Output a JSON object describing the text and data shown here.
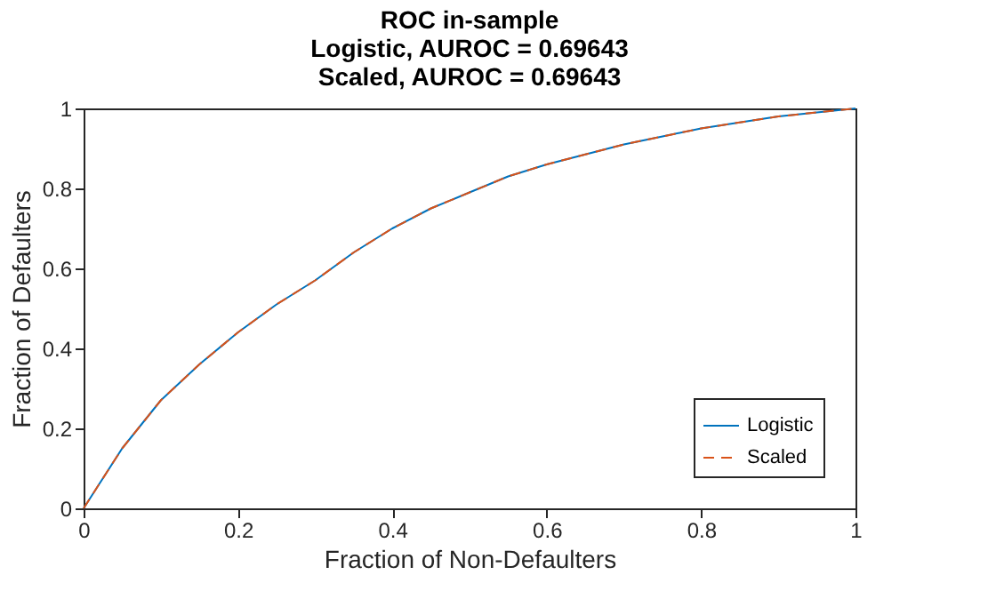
{
  "chart_data": {
    "type": "line",
    "title": "ROC in-sample\nLogistic, AUROC = 0.69643\nScaled, AUROC = 0.69643",
    "xlabel": "Fraction of Non-Defaulters",
    "ylabel": "Fraction of Defaulters",
    "x": [
      0,
      0.02,
      0.05,
      0.1,
      0.15,
      0.2,
      0.25,
      0.3,
      0.35,
      0.4,
      0.45,
      0.5,
      0.55,
      0.6,
      0.65,
      0.7,
      0.75,
      0.8,
      0.85,
      0.9,
      0.95,
      1
    ],
    "series": [
      {
        "name": "Logistic",
        "color": "#0072bd",
        "line_style": "solid",
        "values": [
          0,
          0.06,
          0.15,
          0.27,
          0.36,
          0.44,
          0.51,
          0.57,
          0.64,
          0.7,
          0.75,
          0.79,
          0.83,
          0.86,
          0.885,
          0.91,
          0.93,
          0.95,
          0.965,
          0.98,
          0.99,
          1
        ]
      },
      {
        "name": "Scaled",
        "color": "#d95319",
        "line_style": "dashed",
        "values": [
          0,
          0.06,
          0.15,
          0.27,
          0.36,
          0.44,
          0.51,
          0.57,
          0.64,
          0.7,
          0.75,
          0.79,
          0.83,
          0.86,
          0.885,
          0.91,
          0.93,
          0.95,
          0.965,
          0.98,
          0.99,
          1
        ]
      }
    ],
    "xlim": [
      0,
      1
    ],
    "ylim": [
      0,
      1
    ],
    "xticks": [
      0,
      0.2,
      0.4,
      0.6,
      0.8,
      1
    ],
    "yticks": [
      0,
      0.2,
      0.4,
      0.6,
      0.8,
      1
    ],
    "grid": false,
    "legend": "bottom right",
    "marker": "none"
  }
}
